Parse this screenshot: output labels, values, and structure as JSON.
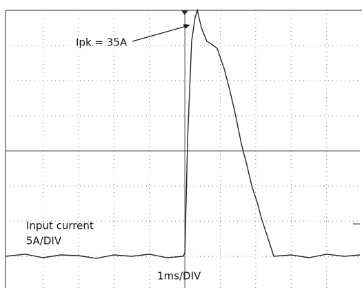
{
  "chart_data": {
    "type": "line",
    "annotations": [
      "Ipk = 35A",
      "Input current",
      "5A/DIV",
      "1ms/DIV"
    ],
    "xlim": [
      -5.06,
      4.94
    ],
    "ylim": [
      -5,
      35
    ],
    "xticks": [
      -4,
      -3,
      -2,
      -1,
      0,
      1,
      2,
      3,
      4
    ],
    "yticks": [
      0,
      5,
      10,
      15,
      20,
      25,
      30
    ],
    "grid": true,
    "series": [
      {
        "name": null,
        "color": "#222",
        "x": [
          -5.06,
          -4.5,
          -4.0,
          -3.5,
          -3.0,
          -2.5,
          -2.0,
          -1.5,
          -1.0,
          -0.5,
          -0.05,
          0,
          0.08,
          0.19,
          0.29,
          0.35,
          0.47,
          0.62,
          0.75,
          0.91,
          1.11,
          1.25,
          1.4,
          1.6,
          1.75,
          1.89,
          2.05,
          2.18,
          2.35,
          2.51,
          3.0,
          3.5,
          4.0,
          4.5,
          4.94
        ],
        "values": [
          0,
          0.3,
          -0.2,
          0.2,
          0.1,
          -0.3,
          0.2,
          0,
          0.3,
          -0.2,
          0,
          0.5,
          16.9,
          30.6,
          34,
          35,
          32.5,
          30.6,
          30.2,
          29.6,
          26.7,
          24,
          20.8,
          15.9,
          13,
          10,
          7.5,
          5.1,
          2.5,
          0,
          0.2,
          -0.2,
          0.3,
          0,
          0.2
        ]
      }
    ]
  }
}
